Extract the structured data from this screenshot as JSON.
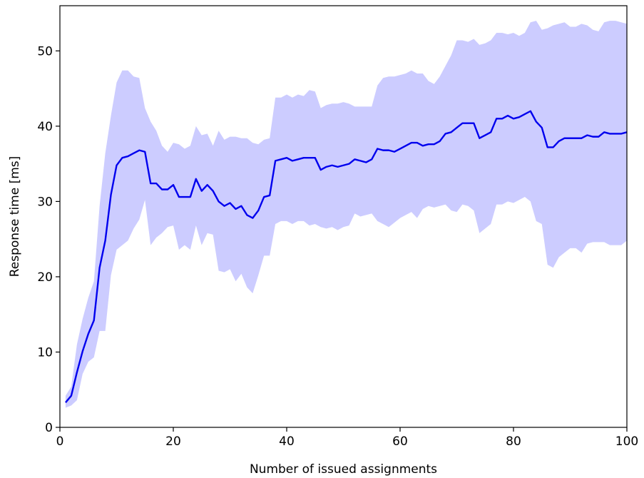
{
  "chart_data": {
    "type": "line",
    "title": "",
    "xlabel": "Number of issued assignments",
    "ylabel": "Response time [ms]",
    "xlim": [
      0,
      100
    ],
    "ylim": [
      0,
      56
    ],
    "xticks": [
      0,
      20,
      40,
      60,
      80,
      100
    ],
    "yticks": [
      0,
      10,
      20,
      30,
      40,
      50
    ],
    "grid": false,
    "legend": "none",
    "colors": {
      "line": "#0000ee",
      "band": "#ccccff"
    },
    "series": [
      {
        "x": [
          1,
          2,
          3,
          4,
          5,
          6,
          7,
          8,
          9,
          10,
          11,
          12,
          13,
          14,
          15,
          16,
          17,
          18,
          19,
          20,
          21,
          22,
          23,
          24,
          25,
          26,
          27,
          28,
          29,
          30,
          31,
          32,
          33,
          34,
          35,
          36,
          37,
          38,
          39,
          40,
          41,
          42,
          43,
          44,
          45,
          46,
          47,
          48,
          49,
          50,
          51,
          52,
          53,
          54,
          55,
          56,
          57,
          58,
          59,
          60,
          61,
          62,
          63,
          64,
          65,
          66,
          67,
          68,
          69,
          70,
          71,
          72,
          73,
          74,
          75,
          76,
          77,
          78,
          79,
          80,
          81,
          82,
          83,
          84,
          85,
          86,
          87,
          88,
          89,
          90,
          91,
          92,
          93,
          94,
          95,
          96,
          97,
          98,
          99,
          100
        ],
        "mean": [
          3.3,
          4.2,
          7.3,
          10.1,
          12.4,
          14.2,
          21.2,
          24.8,
          30.9,
          34.8,
          35.8,
          36.0,
          36.4,
          36.8,
          36.6,
          32.4,
          32.4,
          31.6,
          31.6,
          32.2,
          30.6,
          30.6,
          30.6,
          33.0,
          31.4,
          32.2,
          31.4,
          30.0,
          29.4,
          29.8,
          29.0,
          29.4,
          28.2,
          27.8,
          28.8,
          30.6,
          30.8,
          35.4,
          35.6,
          35.8,
          35.4,
          35.6,
          35.8,
          35.8,
          35.8,
          34.2,
          34.6,
          34.8,
          34.6,
          34.8,
          35.0,
          35.6,
          35.4,
          35.2,
          35.6,
          37.0,
          36.8,
          36.8,
          36.6,
          37.0,
          37.4,
          37.8,
          37.8,
          37.4,
          37.6,
          37.6,
          38.0,
          39.0,
          39.2,
          39.8,
          40.4,
          40.4,
          40.4,
          38.4,
          38.8,
          39.2,
          41.0,
          41.0,
          41.4,
          41.0,
          41.2,
          41.6,
          42.0,
          40.6,
          39.8,
          37.2,
          37.2,
          38.0,
          38.4,
          38.4,
          38.4,
          38.4,
          38.8,
          38.6,
          38.6,
          39.2,
          39.0,
          39.0,
          39.0,
          39.2
        ],
        "upper": [
          4.2,
          5.4,
          11.0,
          14.4,
          17.2,
          19.4,
          29.4,
          36.4,
          41.4,
          45.8,
          47.4,
          47.4,
          46.6,
          46.4,
          42.4,
          40.6,
          39.4,
          37.4,
          36.6,
          37.8,
          37.6,
          37.0,
          37.4,
          40.0,
          38.8,
          39.0,
          37.4,
          39.4,
          38.2,
          38.6,
          38.6,
          38.4,
          38.4,
          37.8,
          37.6,
          38.2,
          38.4,
          43.8,
          43.8,
          44.2,
          43.8,
          44.2,
          44.0,
          44.8,
          44.6,
          42.4,
          42.8,
          43.0,
          43.0,
          43.2,
          43.0,
          42.6,
          42.6,
          42.6,
          42.6,
          45.4,
          46.4,
          46.6,
          46.6,
          46.8,
          47.0,
          47.4,
          47.0,
          47.0,
          46.0,
          45.6,
          46.6,
          48.0,
          49.4,
          51.4,
          51.4,
          51.2,
          51.6,
          50.8,
          51.0,
          51.4,
          52.4,
          52.4,
          52.2,
          52.4,
          52.0,
          52.4,
          53.8,
          54.0,
          52.8,
          53.0,
          53.4,
          53.6,
          53.8,
          53.2,
          53.2,
          53.6,
          53.4,
          52.8,
          52.6,
          53.8,
          54.0,
          54.0,
          53.8,
          53.6
        ],
        "lower": [
          2.6,
          2.9,
          3.6,
          7.1,
          8.7,
          9.3,
          12.8,
          12.8,
          20.2,
          23.6,
          24.2,
          24.8,
          26.4,
          27.6,
          30.2,
          24.2,
          25.2,
          25.8,
          26.6,
          26.8,
          23.6,
          24.2,
          23.6,
          26.8,
          24.2,
          25.8,
          25.6,
          20.8,
          20.6,
          21.0,
          19.4,
          20.4,
          18.6,
          17.8,
          20.2,
          22.8,
          22.8,
          27.0,
          27.4,
          27.4,
          27.0,
          27.4,
          27.4,
          26.8,
          27.0,
          26.6,
          26.4,
          26.6,
          26.2,
          26.6,
          26.8,
          28.4,
          28.0,
          28.2,
          28.4,
          27.4,
          27.0,
          26.6,
          27.2,
          27.8,
          28.2,
          28.6,
          27.8,
          29.0,
          29.4,
          29.2,
          29.4,
          29.6,
          28.8,
          28.6,
          29.6,
          29.4,
          28.8,
          25.8,
          26.4,
          27.0,
          29.6,
          29.6,
          30.0,
          29.8,
          30.2,
          30.6,
          30.0,
          27.4,
          27.0,
          21.6,
          21.2,
          22.6,
          23.2,
          23.8,
          23.8,
          23.2,
          24.4,
          24.6,
          24.6,
          24.6,
          24.2,
          24.2,
          24.2,
          24.8
        ]
      }
    ]
  }
}
